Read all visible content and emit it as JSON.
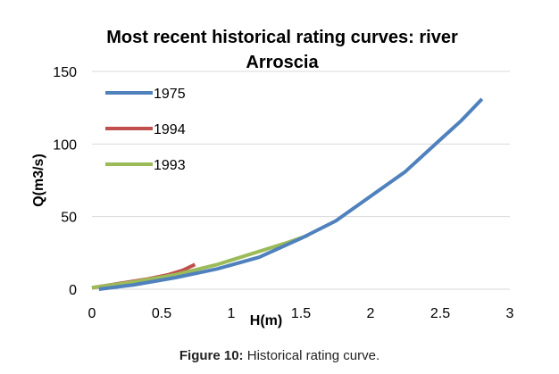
{
  "caption": {
    "label": "Figure 10:",
    "text": "Historical rating curve."
  },
  "colors": {
    "s1975": "#4f81bd",
    "s1994": "#c0504d",
    "s1993": "#9bbb59",
    "grid": "#d9d9d9"
  },
  "chart_data": {
    "type": "line",
    "title": "Most recent historical rating curves: river Arroscia",
    "title_lines": [
      "Most recent historical rating curves: river",
      "Arroscia"
    ],
    "xlabel": "H(m)",
    "ylabel": "Q(m3/s)",
    "xlim": [
      0,
      3
    ],
    "ylim": [
      0,
      150
    ],
    "xticks": [
      0,
      0.5,
      1,
      1.5,
      2,
      2.5,
      3
    ],
    "xtick_labels": [
      "0",
      "0.5",
      "1",
      "1.5",
      "2",
      "2.5",
      "3"
    ],
    "yticks": [
      0,
      50,
      100,
      150
    ],
    "ytick_labels": [
      "0",
      "50",
      "100",
      "150"
    ],
    "grid": "horizontal",
    "legend": "top-left",
    "series": [
      {
        "name": "1975",
        "color": "#4f81bd",
        "x": [
          0.05,
          0.3,
          0.6,
          0.9,
          1.2,
          1.5,
          1.75,
          2.0,
          2.25,
          2.5,
          2.65,
          2.8
        ],
        "y": [
          0,
          3,
          8,
          14,
          22,
          35,
          47,
          64,
          81,
          103,
          116,
          131
        ]
      },
      {
        "name": "1994",
        "color": "#c0504d",
        "x": [
          0,
          0.2,
          0.4,
          0.55,
          0.65,
          0.74
        ],
        "y": [
          1,
          4,
          7,
          10,
          13,
          17
        ]
      },
      {
        "name": "1993",
        "color": "#9bbb59",
        "x": [
          0,
          0.3,
          0.6,
          0.9,
          1.2,
          1.4,
          1.55
        ],
        "y": [
          1,
          5,
          10,
          17,
          26,
          32,
          37
        ]
      }
    ]
  }
}
